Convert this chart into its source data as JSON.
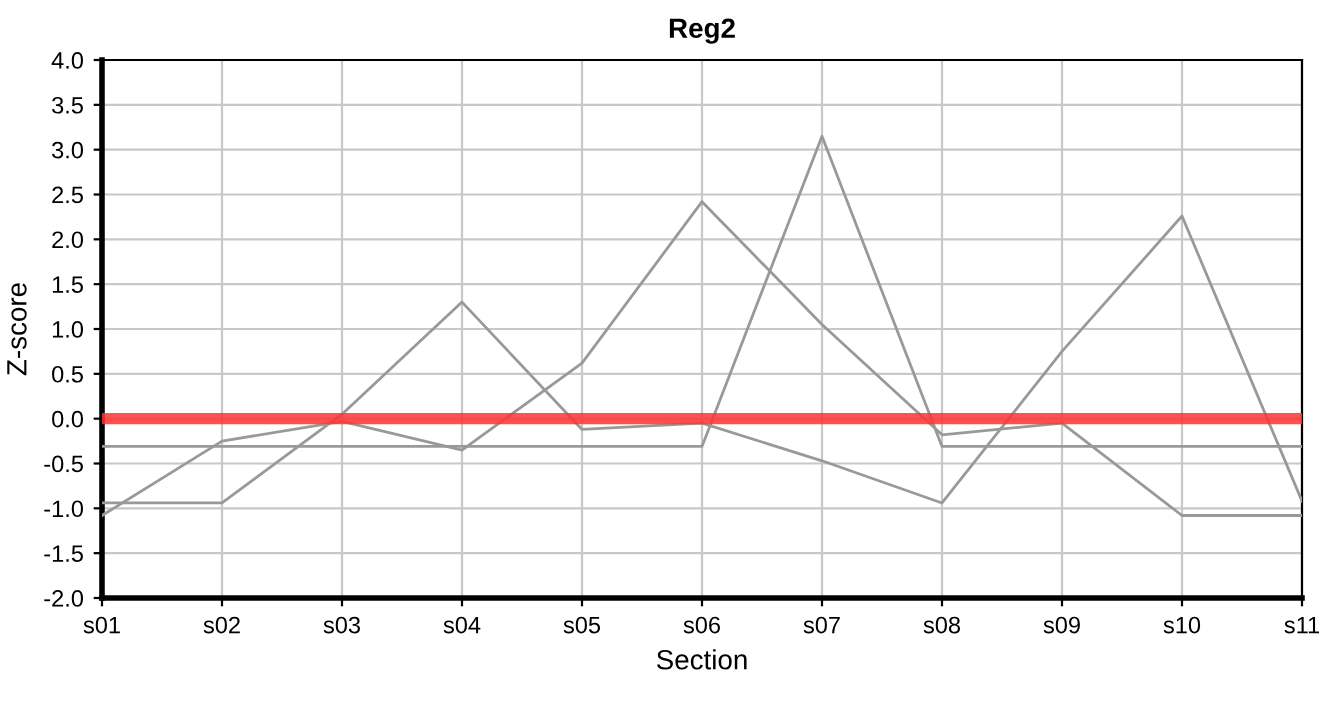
{
  "chart_data": {
    "type": "line",
    "title": "Reg2",
    "xlabel": "Section",
    "ylabel": "Z-score",
    "categories": [
      "s01",
      "s02",
      "s03",
      "s04",
      "s05",
      "s06",
      "s07",
      "s08",
      "s09",
      "s10",
      "s11"
    ],
    "series": [
      {
        "color": "#999999",
        "values": [
          -1.08,
          -0.25,
          -0.03,
          -0.35,
          0.62,
          2.42,
          1.05,
          -0.18,
          -0.05,
          -1.08,
          -1.08
        ]
      },
      {
        "color": "#999999",
        "values": [
          -0.94,
          -0.94,
          0.05,
          1.3,
          -0.12,
          -0.05,
          -0.47,
          -0.94,
          0.75,
          2.26,
          -0.92
        ]
      },
      {
        "color": "#999999",
        "values": [
          -0.31,
          -0.31,
          -0.31,
          -0.31,
          -0.31,
          -0.31,
          3.15,
          -0.31,
          -0.31,
          -0.31,
          -0.31
        ]
      }
    ],
    "ylim": [
      -2,
      4
    ],
    "yticks": [
      {
        "value": -2,
        "label": "-2.0"
      },
      {
        "value": -1.5,
        "label": "-1.5"
      },
      {
        "value": -1,
        "label": "-1.0"
      },
      {
        "value": -0.5,
        "label": "-0.5"
      },
      {
        "value": 0,
        "label": "0.0"
      },
      {
        "value": 0.5,
        "label": "0.5"
      },
      {
        "value": 1,
        "label": "1.0"
      },
      {
        "value": 1.5,
        "label": "1.5"
      },
      {
        "value": 2,
        "label": "2.0"
      },
      {
        "value": 2.5,
        "label": "2.5"
      },
      {
        "value": 3,
        "label": "3.0"
      },
      {
        "value": 3.5,
        "label": "3.5"
      },
      {
        "value": 4,
        "label": "4.0"
      }
    ],
    "ref_lines": [
      {
        "axis": "y",
        "value": 0,
        "color": "#ff3333"
      }
    ],
    "grid": true,
    "legend": false,
    "marker": "none",
    "line_style": "solid"
  }
}
